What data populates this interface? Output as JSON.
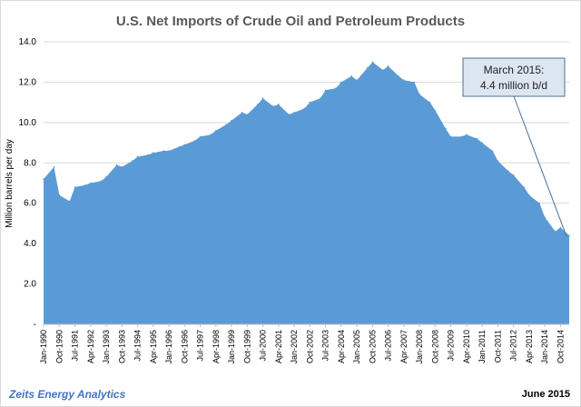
{
  "chart_data": {
    "type": "area",
    "title": "U.S. Net Imports of Crude Oil and Petroleum Products",
    "ylabel": "Million barrels per day",
    "xlabel": "",
    "ylim": [
      0,
      14
    ],
    "y_ticks": [
      "-",
      "2.0",
      "4.0",
      "6.0",
      "8.0",
      "10.0",
      "12.0",
      "14.0"
    ],
    "grid": true,
    "x_tick_labels": [
      "Jan-1990",
      "Oct-1990",
      "Jul-1991",
      "Apr-1992",
      "Jan-1993",
      "Oct-1993",
      "Jul-1994",
      "Apr-1995",
      "Jan-1996",
      "Oct-1996",
      "Jul-1997",
      "Apr-1998",
      "Jan-1999",
      "Oct-1999",
      "Jul-2000",
      "Apr-2001",
      "Jan-2002",
      "Oct-2002",
      "Jul-2003",
      "Apr-2004",
      "Jan-2005",
      "Oct-2005",
      "Jul-2006",
      "Apr-2007",
      "Jan-2008",
      "Oct-2008",
      "Jul-2009",
      "Apr-2010",
      "Jan-2011",
      "Oct-2011",
      "Jul-2012",
      "Apr-2013",
      "Jan-2014",
      "Oct-2014"
    ],
    "series": [
      {
        "x": [
          "Jan-1990",
          "Jul-1990",
          "Oct-1990",
          "Apr-1991",
          "Jul-1991",
          "Jan-1992",
          "Apr-1992",
          "Oct-1992",
          "Jan-1993",
          "Jul-1993",
          "Oct-1993",
          "Apr-1994",
          "Jul-1994",
          "Jan-1995",
          "Apr-1995",
          "Oct-1995",
          "Jan-1996",
          "Jul-1996",
          "Oct-1996",
          "Apr-1997",
          "Jul-1997",
          "Jan-1998",
          "Apr-1998",
          "Oct-1998",
          "Jan-1999",
          "Jul-1999",
          "Oct-1999",
          "Apr-2000",
          "Jul-2000",
          "Jan-2001",
          "Apr-2001",
          "Oct-2001",
          "Jan-2002",
          "Jul-2002",
          "Oct-2002",
          "Apr-2003",
          "Jul-2003",
          "Jan-2004",
          "Apr-2004",
          "Oct-2004",
          "Jan-2005",
          "Jul-2005",
          "Oct-2005",
          "Apr-2006",
          "Jul-2006",
          "Jan-2007",
          "Apr-2007",
          "Oct-2007",
          "Jan-2008",
          "Jul-2008",
          "Oct-2008",
          "Apr-2009",
          "Jul-2009",
          "Jan-2010",
          "Apr-2010",
          "Oct-2010",
          "Jan-2011",
          "Jul-2011",
          "Oct-2011",
          "Apr-2012",
          "Jul-2012",
          "Jan-2013",
          "Apr-2013",
          "Oct-2013",
          "Jan-2014",
          "Jul-2014",
          "Oct-2014",
          "Mar-2015"
        ],
        "values": [
          7.2,
          7.8,
          6.4,
          6.1,
          6.8,
          6.9,
          7.0,
          7.1,
          7.3,
          7.9,
          7.8,
          8.1,
          8.3,
          8.4,
          8.5,
          8.6,
          8.6,
          8.8,
          8.9,
          9.1,
          9.3,
          9.4,
          9.6,
          9.9,
          10.1,
          10.5,
          10.4,
          10.9,
          11.2,
          10.8,
          10.9,
          10.4,
          10.5,
          10.7,
          11.0,
          11.2,
          11.6,
          11.7,
          12.0,
          12.3,
          12.1,
          12.7,
          13.0,
          12.6,
          12.8,
          12.3,
          12.1,
          12.0,
          11.4,
          11.0,
          10.6,
          9.7,
          9.3,
          9.3,
          9.4,
          9.2,
          9.0,
          8.6,
          8.1,
          7.6,
          7.4,
          6.8,
          6.4,
          6.0,
          5.3,
          4.6,
          4.8,
          4.4
        ]
      }
    ],
    "annotation": {
      "line1": "March 2015:",
      "line2": "4.4 million b/d"
    },
    "colors": {
      "area": "#5b9bd5",
      "grid": "#d9d9d9",
      "title": "#595959",
      "annotation_border": "#4a6f96",
      "annotation_fill": "#dce6f2"
    }
  },
  "footer": {
    "left": "Zeits Energy Analytics",
    "right": "June 2015"
  }
}
